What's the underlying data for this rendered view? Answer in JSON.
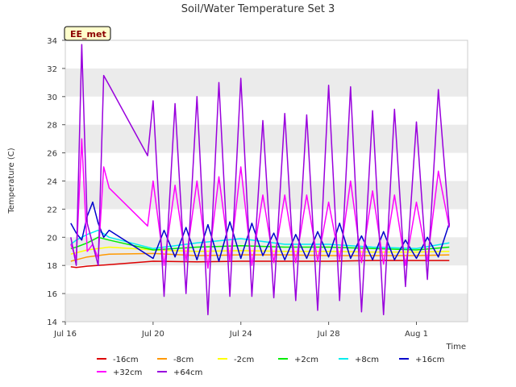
{
  "chart_data": {
    "type": "line",
    "title": "Soil/Water Temperature Set 3",
    "xlabel": "Time",
    "ylabel": "Temperature (C)",
    "station_tag": "EE_met",
    "ylim": [
      14,
      34
    ],
    "yticks": [
      14,
      16,
      18,
      20,
      22,
      24,
      26,
      28,
      30,
      32,
      34
    ],
    "xlim": [
      "2024-07-16",
      "2024-08-03T08:00"
    ],
    "xticks": [
      {
        "date": "2024-07-16",
        "label": "Jul 16"
      },
      {
        "date": "2024-07-20",
        "label": "Jul 20"
      },
      {
        "date": "2024-07-24",
        "label": "Jul 24"
      },
      {
        "date": "2024-07-28",
        "label": "Jul 28"
      },
      {
        "date": "2024-08-01",
        "label": "Aug 1"
      }
    ],
    "grid": "horizontal bands",
    "legend_position": "bottom",
    "colors": {
      "band": "#ebebeb",
      "background": "#ffffff",
      "tag_fill": "#ffffcc"
    },
    "series": [
      {
        "name": "-16cm",
        "color": "#dd0000",
        "x": [
          "2024-07-16T06:00",
          "2024-07-16T12:00",
          "2024-07-17T00:00",
          "2024-07-18T00:00",
          "2024-07-20T00:00",
          "2024-07-22T00:00",
          "2024-07-24T00:00",
          "2024-07-26T00:00",
          "2024-07-28T00:00",
          "2024-07-30T00:00",
          "2024-08-01T00:00",
          "2024-08-02T12:00"
        ],
        "values": [
          17.9,
          17.85,
          17.95,
          18.05,
          18.3,
          18.25,
          18.3,
          18.3,
          18.3,
          18.35,
          18.35,
          18.35
        ]
      },
      {
        "name": "-8cm",
        "color": "#ff9900",
        "x": [
          "2024-07-16T06:00",
          "2024-07-16T12:00",
          "2024-07-17T00:00",
          "2024-07-18T00:00",
          "2024-07-20T00:00",
          "2024-07-22T00:00",
          "2024-07-24T00:00",
          "2024-07-26T00:00",
          "2024-07-28T00:00",
          "2024-07-30T00:00",
          "2024-08-01T00:00",
          "2024-08-02T12:00"
        ],
        "values": [
          18.3,
          18.4,
          18.6,
          18.8,
          18.85,
          18.7,
          18.75,
          18.75,
          18.7,
          18.7,
          18.7,
          18.75
        ]
      },
      {
        "name": "-2cm",
        "color": "#ffff00",
        "x": [
          "2024-07-16T06:00",
          "2024-07-16T12:00",
          "2024-07-17T00:00",
          "2024-07-18T00:00",
          "2024-07-20T00:00",
          "2024-07-22T00:00",
          "2024-07-24T00:00",
          "2024-07-26T00:00",
          "2024-07-28T00:00",
          "2024-07-30T00:00",
          "2024-08-01T00:00",
          "2024-08-02T12:00"
        ],
        "values": [
          18.8,
          18.9,
          19.1,
          19.3,
          19.1,
          19.0,
          19.05,
          19.0,
          19.0,
          18.95,
          18.95,
          19.0
        ]
      },
      {
        "name": "+2cm",
        "color": "#00ee00",
        "x": [
          "2024-07-16T06:00",
          "2024-07-16T12:00",
          "2024-07-17T00:00",
          "2024-07-17T12:00",
          "2024-07-18T00:00",
          "2024-07-20T00:00",
          "2024-07-22T00:00",
          "2024-07-24T00:00",
          "2024-07-26T00:00",
          "2024-07-28T00:00",
          "2024-07-30T00:00",
          "2024-08-01T00:00",
          "2024-08-02T12:00"
        ],
        "values": [
          19.2,
          19.3,
          19.6,
          20.0,
          19.8,
          19.1,
          19.3,
          19.4,
          19.3,
          19.3,
          19.2,
          19.1,
          19.3
        ]
      },
      {
        "name": "+8cm",
        "color": "#00eeee",
        "x": [
          "2024-07-16T06:00",
          "2024-07-16T12:00",
          "2024-07-17T00:00",
          "2024-07-17T12:00",
          "2024-07-18T00:00",
          "2024-07-20T00:00",
          "2024-07-22T00:00",
          "2024-07-24T00:00",
          "2024-07-26T00:00",
          "2024-07-28T00:00",
          "2024-07-30T00:00",
          "2024-08-01T00:00",
          "2024-08-02T12:00"
        ],
        "values": [
          19.5,
          19.8,
          20.2,
          20.5,
          20.0,
          19.2,
          19.6,
          19.9,
          19.5,
          19.5,
          19.3,
          19.2,
          19.6
        ]
      },
      {
        "name": "+16cm",
        "color": "#0000cc",
        "x": [
          "2024-07-16T06:00",
          "2024-07-16T12:00",
          "2024-07-16T18:00",
          "2024-07-17T00:00",
          "2024-07-17T06:00",
          "2024-07-17T12:00",
          "2024-07-17T18:00",
          "2024-07-18T00:00",
          "2024-07-20T00:00",
          "2024-07-20T12:00",
          "2024-07-21T00:00",
          "2024-07-21T12:00",
          "2024-07-22T00:00",
          "2024-07-22T12:00",
          "2024-07-23T00:00",
          "2024-07-23T12:00",
          "2024-07-24T00:00",
          "2024-07-24T12:00",
          "2024-07-25T00:00",
          "2024-07-25T12:00",
          "2024-07-26T00:00",
          "2024-07-26T12:00",
          "2024-07-27T00:00",
          "2024-07-27T12:00",
          "2024-07-28T00:00",
          "2024-07-28T12:00",
          "2024-07-29T00:00",
          "2024-07-29T12:00",
          "2024-07-30T00:00",
          "2024-07-30T12:00",
          "2024-07-31T00:00",
          "2024-07-31T12:00",
          "2024-08-01T00:00",
          "2024-08-01T12:00",
          "2024-08-02T00:00",
          "2024-08-02T12:00"
        ],
        "values": [
          21.0,
          20.3,
          19.8,
          21.5,
          22.5,
          21.0,
          20.0,
          20.5,
          18.5,
          20.5,
          18.6,
          20.7,
          18.4,
          20.9,
          18.3,
          21.1,
          18.5,
          21.0,
          18.7,
          20.3,
          18.4,
          20.2,
          18.5,
          20.4,
          18.6,
          21.0,
          18.5,
          20.1,
          18.4,
          20.4,
          18.4,
          19.8,
          18.5,
          20.0,
          18.6,
          21.0
        ]
      },
      {
        "name": "+32cm",
        "color": "#ff00ff",
        "x": [
          "2024-07-16T06:00",
          "2024-07-16T12:00",
          "2024-07-16T18:00",
          "2024-07-17T00:00",
          "2024-07-17T06:00",
          "2024-07-17T12:00",
          "2024-07-17T18:00",
          "2024-07-18T00:00",
          "2024-07-19T18:00",
          "2024-07-20T00:00",
          "2024-07-20T12:00",
          "2024-07-21T00:00",
          "2024-07-21T12:00",
          "2024-07-22T00:00",
          "2024-07-22T12:00",
          "2024-07-23T00:00",
          "2024-07-23T12:00",
          "2024-07-24T00:00",
          "2024-07-24T12:00",
          "2024-07-25T00:00",
          "2024-07-25T12:00",
          "2024-07-26T00:00",
          "2024-07-26T12:00",
          "2024-07-27T00:00",
          "2024-07-27T12:00",
          "2024-07-28T00:00",
          "2024-07-28T12:00",
          "2024-07-29T00:00",
          "2024-07-29T12:00",
          "2024-07-30T00:00",
          "2024-07-30T12:00",
          "2024-07-31T00:00",
          "2024-07-31T12:00",
          "2024-08-01T00:00",
          "2024-08-01T12:00",
          "2024-08-02T00:00",
          "2024-08-02T12:00"
        ],
        "values": [
          19.5,
          18.5,
          27.0,
          19.0,
          19.5,
          18.5,
          25.0,
          23.5,
          20.8,
          24.0,
          18.0,
          23.7,
          18.3,
          24.0,
          17.8,
          24.3,
          18.3,
          25.0,
          18.0,
          23.0,
          18.2,
          23.0,
          18.2,
          23.0,
          18.3,
          22.5,
          18.4,
          24.0,
          18.2,
          23.3,
          18.1,
          23.0,
          18.0,
          22.5,
          18.3,
          24.7,
          20.7
        ]
      },
      {
        "name": "+64cm",
        "color": "#9900dd",
        "x": [
          "2024-07-16T06:00",
          "2024-07-16T12:00",
          "2024-07-16T18:00",
          "2024-07-17T00:00",
          "2024-07-17T06:00",
          "2024-07-17T12:00",
          "2024-07-17T18:00",
          "2024-07-18T00:00",
          "2024-07-19T18:00",
          "2024-07-20T00:00",
          "2024-07-20T12:00",
          "2024-07-21T00:00",
          "2024-07-21T12:00",
          "2024-07-22T00:00",
          "2024-07-22T12:00",
          "2024-07-23T00:00",
          "2024-07-23T12:00",
          "2024-07-24T00:00",
          "2024-07-24T12:00",
          "2024-07-25T00:00",
          "2024-07-25T12:00",
          "2024-07-26T00:00",
          "2024-07-26T12:00",
          "2024-07-27T00:00",
          "2024-07-27T12:00",
          "2024-07-28T00:00",
          "2024-07-28T12:00",
          "2024-07-29T00:00",
          "2024-07-29T12:00",
          "2024-07-30T00:00",
          "2024-07-30T12:00",
          "2024-07-31T00:00",
          "2024-07-31T12:00",
          "2024-08-01T00:00",
          "2024-08-01T12:00",
          "2024-08-02T00:00",
          "2024-08-02T12:00"
        ],
        "values": [
          20.0,
          18.0,
          33.7,
          21.0,
          19.5,
          18.0,
          31.5,
          30.8,
          25.8,
          29.7,
          15.8,
          29.5,
          16.0,
          30.0,
          14.5,
          31.0,
          15.8,
          31.3,
          15.8,
          28.3,
          15.7,
          28.8,
          15.5,
          28.7,
          14.8,
          30.8,
          15.5,
          30.7,
          14.7,
          29.0,
          14.5,
          29.1,
          16.5,
          28.2,
          17.0,
          30.5,
          20.8
        ]
      }
    ]
  }
}
